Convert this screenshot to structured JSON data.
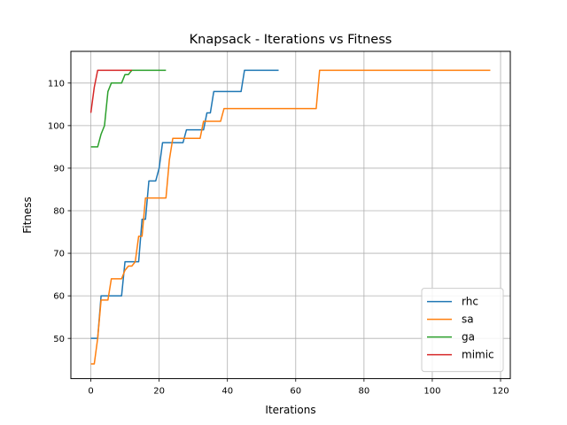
{
  "chart_data": {
    "type": "line",
    "title": "Knapsack - Iterations vs Fitness",
    "xlabel": "Iterations",
    "ylabel": "Fitness",
    "xlim": [
      -5.85,
      122.85
    ],
    "ylim": [
      40.55,
      117.45
    ],
    "xticks": [
      0,
      20,
      40,
      60,
      80,
      100,
      120
    ],
    "yticks": [
      50,
      60,
      70,
      80,
      90,
      100,
      110
    ],
    "grid": true,
    "legend_position": "lower-right",
    "series": [
      {
        "name": "rhc",
        "color": "#1f77b4",
        "x": [
          0,
          1,
          2,
          3,
          4,
          5,
          6,
          7,
          8,
          9,
          10,
          11,
          12,
          13,
          14,
          15,
          16,
          17,
          18,
          19,
          20,
          21,
          22,
          23,
          24,
          25,
          26,
          27,
          28,
          29,
          30,
          31,
          32,
          33,
          34,
          35,
          36,
          37,
          38,
          39,
          40,
          41,
          42,
          43,
          44,
          45,
          46,
          47,
          48,
          49,
          50,
          51,
          52,
          53,
          54,
          55
        ],
        "y": [
          50,
          50,
          50,
          60,
          60,
          60,
          60,
          60,
          60,
          60,
          68,
          68,
          68,
          68,
          68,
          78,
          78,
          87,
          87,
          87,
          90,
          96,
          96,
          96,
          96,
          96,
          96,
          96,
          99,
          99,
          99,
          99,
          99,
          99,
          103,
          103,
          108,
          108,
          108,
          108,
          108,
          108,
          108,
          108,
          108,
          113,
          113,
          113,
          113,
          113,
          113,
          113,
          113,
          113,
          113,
          113
        ]
      },
      {
        "name": "sa",
        "color": "#ff7f0e",
        "x": [
          0,
          1,
          2,
          3,
          4,
          5,
          6,
          7,
          8,
          9,
          10,
          11,
          12,
          13,
          14,
          15,
          16,
          17,
          18,
          19,
          20,
          21,
          22,
          23,
          24,
          25,
          26,
          27,
          28,
          29,
          30,
          31,
          32,
          33,
          34,
          35,
          36,
          37,
          38,
          39,
          40,
          50,
          60,
          66,
          67,
          80,
          100,
          117
        ],
        "y": [
          44,
          44,
          50,
          59,
          59,
          59,
          64,
          64,
          64,
          64,
          66,
          67,
          67,
          68,
          74,
          74,
          83,
          83,
          83,
          83,
          83,
          83,
          83,
          92,
          97,
          97,
          97,
          97,
          97,
          97,
          97,
          97,
          97,
          101,
          101,
          101,
          101,
          101,
          101,
          104,
          104,
          104,
          104,
          104,
          113,
          113,
          113,
          113
        ]
      },
      {
        "name": "ga",
        "color": "#2ca02c",
        "x": [
          0,
          1,
          2,
          3,
          4,
          5,
          6,
          7,
          8,
          9,
          10,
          11,
          12,
          13,
          14,
          15,
          16,
          17,
          18,
          19,
          20,
          21,
          22
        ],
        "y": [
          95,
          95,
          95,
          98,
          100,
          108,
          110,
          110,
          110,
          110,
          112,
          112,
          113,
          113,
          113,
          113,
          113,
          113,
          113,
          113,
          113,
          113,
          113
        ]
      },
      {
        "name": "mimic",
        "color": "#d62728",
        "x": [
          0,
          1,
          2,
          3,
          4,
          5,
          6,
          7,
          8,
          9,
          10,
          11,
          12
        ],
        "y": [
          103,
          109,
          113,
          113,
          113,
          113,
          113,
          113,
          113,
          113,
          113,
          113,
          113
        ]
      }
    ]
  }
}
